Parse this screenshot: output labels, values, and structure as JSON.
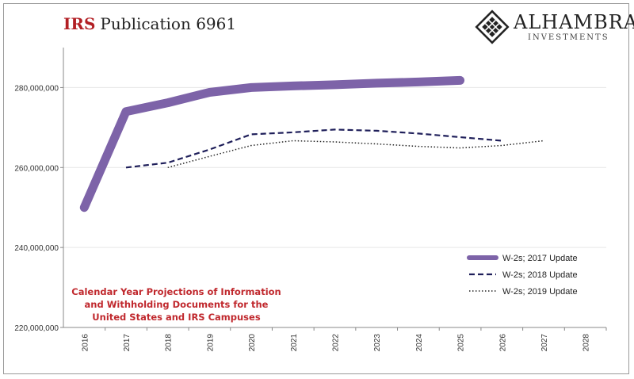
{
  "header": {
    "title_prefix": "IRS",
    "title_rest": "Publication 6961"
  },
  "logo": {
    "brand": "ALHAMBRA",
    "sub": "INVESTMENTS",
    "icon": "diamond-lattice-icon"
  },
  "annotation": "Calendar Year Projections of Information and Withholding Documents for the United States and IRS Campuses",
  "colors": {
    "series_2017": "#7d63a8",
    "series_2018": "#1f1f5a",
    "series_2019": "#222222",
    "title_accent": "#b21f24",
    "annotation": "#c0282d"
  },
  "chart_data": {
    "type": "line",
    "title": "Publication 6961",
    "xlabel": "",
    "ylabel": "",
    "categories": [
      "2016",
      "2017",
      "2018",
      "2019",
      "2020",
      "2021",
      "2022",
      "2023",
      "2024",
      "2025",
      "2026",
      "2027",
      "2028"
    ],
    "ylim": [
      220000000,
      290000000
    ],
    "yticks": [
      220000000,
      240000000,
      260000000,
      280000000
    ],
    "ytick_labels": [
      "220,000,000",
      "240,000,000",
      "260,000,000",
      "280,000,000"
    ],
    "grid": true,
    "legend_position": "bottom-right",
    "series": [
      {
        "name": "W-2s; 2017 Update",
        "style": "thick-solid",
        "x": [
          "2016",
          "2017",
          "2018",
          "2019",
          "2020",
          "2021",
          "2022",
          "2023",
          "2024",
          "2025"
        ],
        "values": [
          250000000,
          274000000,
          276200000,
          278800000,
          280000000,
          280400000,
          280700000,
          281100000,
          281400000,
          281800000
        ]
      },
      {
        "name": "W-2s; 2018 Update",
        "style": "dashed",
        "x": [
          "2017",
          "2018",
          "2019",
          "2020",
          "2021",
          "2022",
          "2023",
          "2024",
          "2025",
          "2026"
        ],
        "values": [
          260000000,
          261200000,
          264500000,
          268300000,
          268800000,
          269500000,
          269200000,
          268500000,
          267600000,
          266700000
        ]
      },
      {
        "name": "W-2s; 2019 Update",
        "style": "dotted",
        "x": [
          "2018",
          "2019",
          "2020",
          "2021",
          "2022",
          "2023",
          "2024",
          "2025",
          "2026",
          "2027"
        ],
        "values": [
          260000000,
          262800000,
          265500000,
          266700000,
          266400000,
          265900000,
          265300000,
          264900000,
          265500000,
          266700000
        ]
      }
    ]
  }
}
